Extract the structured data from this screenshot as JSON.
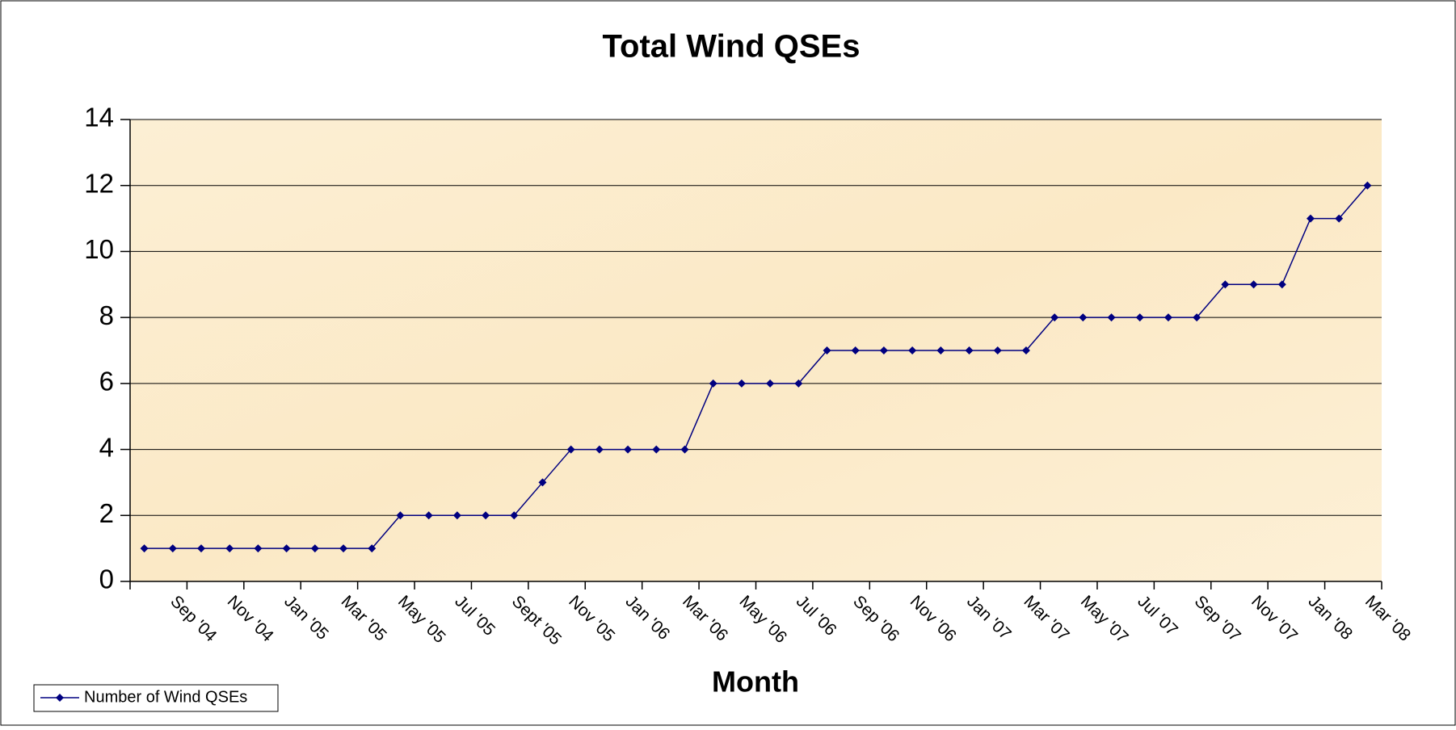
{
  "chart_data": {
    "type": "line",
    "title": "Total Wind QSEs",
    "x_label": "Month",
    "categories": [
      null,
      "Sep '04",
      null,
      "Nov '04",
      null,
      "Jan '05",
      null,
      "Mar '05",
      null,
      "May '05",
      null,
      "Jul '05",
      null,
      "Sept '05",
      null,
      "Nov '05",
      null,
      "Jan '06",
      null,
      "Mar '06",
      null,
      "May '06",
      null,
      "Jul '06",
      null,
      "Sep '06",
      null,
      "Nov '06",
      null,
      "Jan '07",
      null,
      "Mar '07",
      null,
      "May '07",
      null,
      "Jul '07",
      null,
      "Sep '07",
      null,
      "Nov '07",
      null,
      "Jan '08",
      null,
      "Mar '08"
    ],
    "series": [
      {
        "name": "Number of Wind QSEs",
        "color": "#000080",
        "values": [
          1,
          1,
          1,
          1,
          1,
          1,
          1,
          1,
          1,
          2,
          2,
          2,
          2,
          2,
          3,
          4,
          4,
          4,
          4,
          4,
          6,
          6,
          6,
          6,
          7,
          7,
          7,
          7,
          7,
          7,
          7,
          7,
          8,
          8,
          8,
          8,
          8,
          8,
          9,
          9,
          9,
          11,
          11,
          12
        ]
      }
    ],
    "ylim": [
      0,
      14
    ],
    "yticks": [
      0,
      2,
      4,
      6,
      8,
      10,
      12,
      14
    ],
    "grid": true,
    "legend": "bottom-left"
  }
}
